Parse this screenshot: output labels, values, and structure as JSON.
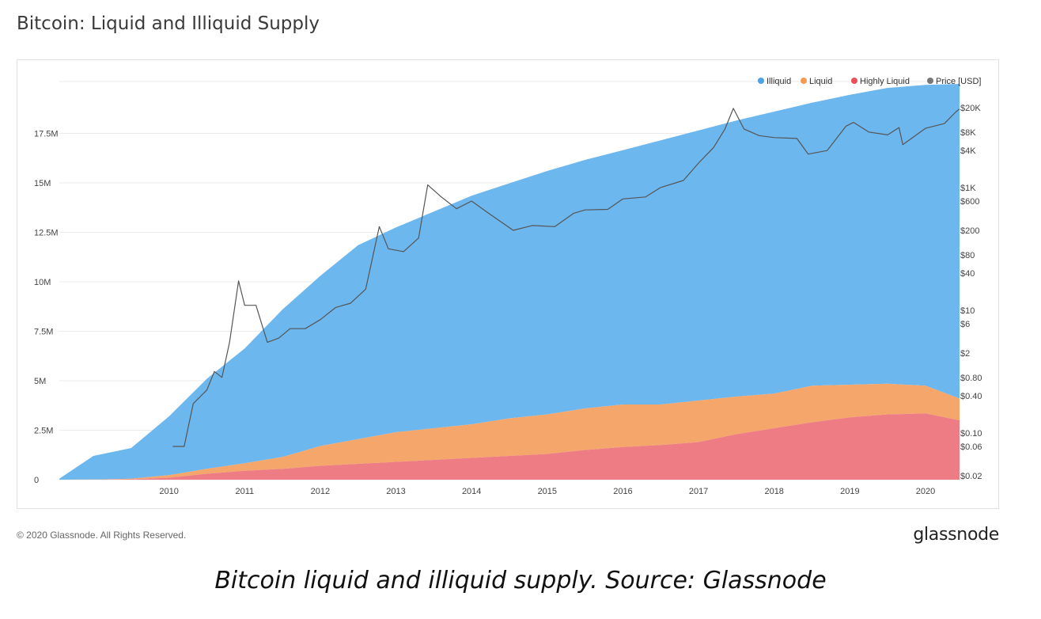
{
  "title": "Bitcoin: Liquid and Illiquid Supply",
  "copyright": "© 2020 Glassnode. All Rights Reserved.",
  "brand": "glassnode",
  "watermark": "glassnode",
  "caption": "Bitcoin liquid and illiquid supply. Source: Glassnode",
  "colors": {
    "illiquid": "#6cb7ee",
    "liquid": "#f4a66b",
    "highly_liquid": "#ee7c84",
    "price": "#555555",
    "grid": "#ebebeb"
  },
  "chart_data": {
    "type": "area",
    "stacked": true,
    "legend_position": "top-right",
    "legend": [
      {
        "label": "Illiquid",
        "color": "#4ba3e8"
      },
      {
        "label": "Liquid",
        "color": "#f39b54"
      },
      {
        "label": "Highly Liquid",
        "color": "#e9505b"
      },
      {
        "label": "Price [USD]",
        "color": "#777777"
      }
    ],
    "x_ticks": [
      "2010",
      "2011",
      "2012",
      "2013",
      "2014",
      "2015",
      "2016",
      "2017",
      "2018",
      "2019",
      "2020"
    ],
    "x_range": [
      2009.05,
      2020.95
    ],
    "y_left_ticks": [
      {
        "label": "0",
        "value": 0
      },
      {
        "label": "2.5M",
        "value": 2500000
      },
      {
        "label": "5M",
        "value": 5000000
      },
      {
        "label": "7.5M",
        "value": 7500000
      },
      {
        "label": "10M",
        "value": 10000000
      },
      {
        "label": "12.5M",
        "value": 12500000
      },
      {
        "label": "15M",
        "value": 15000000
      },
      {
        "label": "17.5M",
        "value": 17500000
      }
    ],
    "y_left_range": [
      0,
      20000000
    ],
    "y_right_scale": "log",
    "y_right_range": [
      0.02,
      20000
    ],
    "y_right_ticks": [
      {
        "label": "$0.02",
        "value": 0.02
      },
      {
        "label": "$0.06",
        "value": 0.06
      },
      {
        "label": "$0.10",
        "value": 0.1
      },
      {
        "label": "$0.40",
        "value": 0.4
      },
      {
        "label": "$0.80",
        "value": 0.8
      },
      {
        "label": "$2",
        "value": 2
      },
      {
        "label": "$6",
        "value": 6
      },
      {
        "label": "$10",
        "value": 10
      },
      {
        "label": "$40",
        "value": 40
      },
      {
        "label": "$80",
        "value": 80
      },
      {
        "label": "$200",
        "value": 200
      },
      {
        "label": "$600",
        "value": 600
      },
      {
        "label": "$1K",
        "value": 1000
      },
      {
        "label": "$4K",
        "value": 4000
      },
      {
        "label": "$8K",
        "value": 8000
      },
      {
        "label": "$20K",
        "value": 20000
      }
    ],
    "x": [
      2009.05,
      2009.5,
      2010.0,
      2010.5,
      2011.0,
      2011.5,
      2012.0,
      2012.5,
      2013.0,
      2013.5,
      2014.0,
      2014.5,
      2015.0,
      2015.5,
      2016.0,
      2016.5,
      2017.0,
      2017.5,
      2018.0,
      2018.5,
      2019.0,
      2019.5,
      2020.0,
      2020.5,
      2020.95
    ],
    "series": [
      {
        "name": "Highly Liquid",
        "values": [
          0,
          0,
          20000,
          100000,
          300000,
          450000,
          550000,
          700000,
          800000,
          900000,
          1000000,
          1100000,
          1200000,
          1300000,
          1500000,
          1650000,
          1750000,
          1900000,
          2300000,
          2600000,
          2900000,
          3150000,
          3300000,
          3350000,
          3000000
        ]
      },
      {
        "name": "Liquid",
        "values": [
          0,
          10000,
          30000,
          130000,
          250000,
          380000,
          600000,
          1000000,
          1250000,
          1500000,
          1600000,
          1700000,
          1900000,
          2000000,
          2100000,
          2150000,
          2050000,
          2100000,
          1900000,
          1750000,
          1850000,
          1650000,
          1550000,
          1400000,
          1100000
        ]
      },
      {
        "name": "Illiquid",
        "values": [
          50000,
          1190000,
          1550000,
          2970000,
          4550000,
          5800000,
          7450000,
          8600000,
          9800000,
          10350000,
          10950000,
          11550000,
          11880000,
          12300000,
          12560000,
          12850000,
          13350000,
          13650000,
          13950000,
          14250000,
          14300000,
          14650000,
          14950000,
          15200000,
          15900000
        ]
      }
    ],
    "price_usd": [
      [
        2010.55,
        0.06
      ],
      [
        2010.7,
        0.06
      ],
      [
        2010.82,
        0.3
      ],
      [
        2011.0,
        0.5
      ],
      [
        2011.1,
        1.0
      ],
      [
        2011.2,
        0.8
      ],
      [
        2011.3,
        3.0
      ],
      [
        2011.42,
        30
      ],
      [
        2011.5,
        12
      ],
      [
        2011.65,
        12
      ],
      [
        2011.8,
        3.0
      ],
      [
        2011.95,
        3.5
      ],
      [
        2012.1,
        5.0
      ],
      [
        2012.3,
        5.0
      ],
      [
        2012.5,
        7.0
      ],
      [
        2012.7,
        11
      ],
      [
        2012.9,
        13
      ],
      [
        2013.1,
        22
      ],
      [
        2013.28,
        230
      ],
      [
        2013.4,
        100
      ],
      [
        2013.6,
        90
      ],
      [
        2013.8,
        150
      ],
      [
        2013.92,
        1100
      ],
      [
        2014.1,
        700
      ],
      [
        2014.3,
        450
      ],
      [
        2014.5,
        600
      ],
      [
        2014.7,
        400
      ],
      [
        2015.05,
        200
      ],
      [
        2015.3,
        240
      ],
      [
        2015.6,
        230
      ],
      [
        2015.85,
        380
      ],
      [
        2016.0,
        430
      ],
      [
        2016.3,
        440
      ],
      [
        2016.5,
        650
      ],
      [
        2016.8,
        700
      ],
      [
        2017.0,
        1000
      ],
      [
        2017.3,
        1300
      ],
      [
        2017.5,
        2500
      ],
      [
        2017.7,
        4500
      ],
      [
        2017.85,
        9000
      ],
      [
        2017.96,
        19500
      ],
      [
        2018.1,
        9000
      ],
      [
        2018.3,
        7000
      ],
      [
        2018.5,
        6500
      ],
      [
        2018.8,
        6300
      ],
      [
        2018.95,
        3500
      ],
      [
        2019.2,
        4000
      ],
      [
        2019.45,
        10000
      ],
      [
        2019.55,
        11500
      ],
      [
        2019.75,
        8000
      ],
      [
        2020.0,
        7200
      ],
      [
        2020.15,
        9500
      ],
      [
        2020.2,
        5000
      ],
      [
        2020.5,
        9200
      ],
      [
        2020.75,
        11000
      ],
      [
        2020.9,
        17000
      ],
      [
        2020.95,
        19000
      ]
    ]
  }
}
